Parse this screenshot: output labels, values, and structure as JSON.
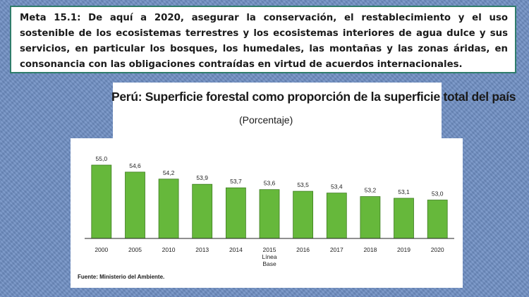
{
  "meta": {
    "text": "Meta 15.1: De aquí a 2020, asegurar la conservación, el restablecimiento y el uso sostenible de los ecosistemas terrestres y los ecosistemas interiores de agua dulce y sus servicios, en particular los bosques, los humedales, las montañas y las zonas áridas, en consonancia con las obligaciones contraídas en virtud de acuerdos internacionales."
  },
  "chart_data": {
    "type": "bar",
    "title": "Perú: Superficie forestal como proporción de la superficie total del país",
    "subtitle": "(Porcentaje)",
    "categories": [
      "2000",
      "2005",
      "2010",
      "2013",
      "2014",
      "2015",
      "2016",
      "2017",
      "2018",
      "2019",
      "2020"
    ],
    "category_sublabels": {
      "2015": [
        "Línea",
        "Base"
      ]
    },
    "values": [
      55.0,
      54.6,
      54.2,
      53.9,
      53.7,
      53.6,
      53.5,
      53.4,
      53.2,
      53.1,
      53.0
    ],
    "value_labels": [
      "55,0",
      "54,6",
      "54,2",
      "53,9",
      "53,7",
      "53,6",
      "53,5",
      "53,4",
      "53,2",
      "53,1",
      "53,0"
    ],
    "xlabel": "",
    "ylabel": "",
    "ylim": [
      50.8,
      55.0
    ],
    "grid": false,
    "bar_color": "#66b83b",
    "bar_edge_color": "#3f7d22",
    "source": "Fuente: Ministerio del Ambiente."
  }
}
